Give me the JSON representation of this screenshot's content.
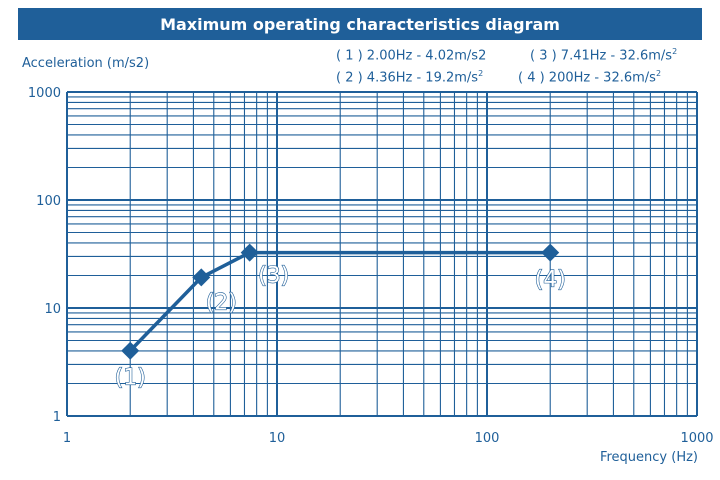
{
  "chart_data": {
    "type": "line",
    "title": "Maximum operating characteristics diagram",
    "xlabel": "Frequency (Hz)",
    "ylabel": "Acceleration (m/s2)",
    "xscale": "log",
    "yscale": "log",
    "xlim": [
      1,
      1000
    ],
    "ylim": [
      1,
      1000
    ],
    "xticks": [
      "1",
      "10",
      "100",
      "1000"
    ],
    "yticks": [
      "1",
      "10",
      "100",
      "1000"
    ],
    "grid": true,
    "color": "#1f5f99",
    "series": [
      {
        "marker": "diamond",
        "points": [
          {
            "label": "(1)",
            "x": 2.0,
            "y": 4.02
          },
          {
            "label": "(2)",
            "x": 4.36,
            "y": 19.2
          },
          {
            "label": "(3)",
            "x": 7.41,
            "y": 32.6
          },
          {
            "label": "(4)",
            "x": 200,
            "y": 32.6
          }
        ]
      }
    ],
    "legend": [
      {
        "text": "( 1 ) 2.00Hz - 4.02m/s2",
        "sup": ""
      },
      {
        "text": "( 3 ) 7.41Hz - 32.6m/s",
        "sup": "2"
      },
      {
        "text": "( 2 ) 4.36Hz - 19.2m/s",
        "sup": "2"
      },
      {
        "text": "( 4 ) 200Hz - 32.6m/s",
        "sup": "2"
      }
    ]
  }
}
